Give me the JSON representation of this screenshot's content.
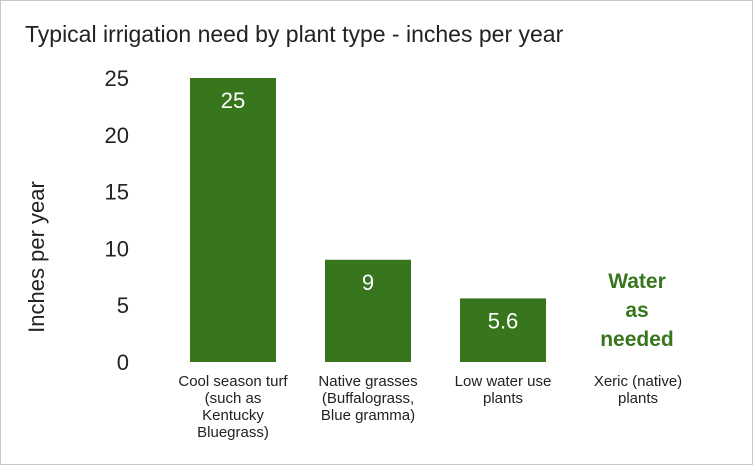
{
  "chart_data": {
    "type": "bar",
    "title": "Typical irrigation need by plant type - inches per year",
    "ylabel": "Inches per year",
    "xlabel": "",
    "ylim": [
      0,
      25
    ],
    "yticks": [
      0,
      5,
      10,
      15,
      20,
      25
    ],
    "grid": false,
    "legend": "none",
    "bar_color": "#38761d",
    "categories": [
      "Cool season turf (such as Kentucky Bluegrass)",
      "Native grasses (Buffalograss, Blue gramma)",
      "Low water use plants",
      "Xeric (native) plants"
    ],
    "values": [
      25,
      9,
      5.6,
      null
    ],
    "data_labels": [
      "25",
      "9",
      "5.6",
      ""
    ],
    "annotation": {
      "text": "Water\nas\nneeded",
      "category_index": 3,
      "color": "#38761d"
    }
  },
  "xlabels_display": [
    "Cool season turf\n(such as\nKentucky\nBluegrass)",
    "Native grasses\n(Buffalograss,\nBlue gramma)",
    "Low water use\nplants",
    "Xeric (native)\nplants"
  ]
}
